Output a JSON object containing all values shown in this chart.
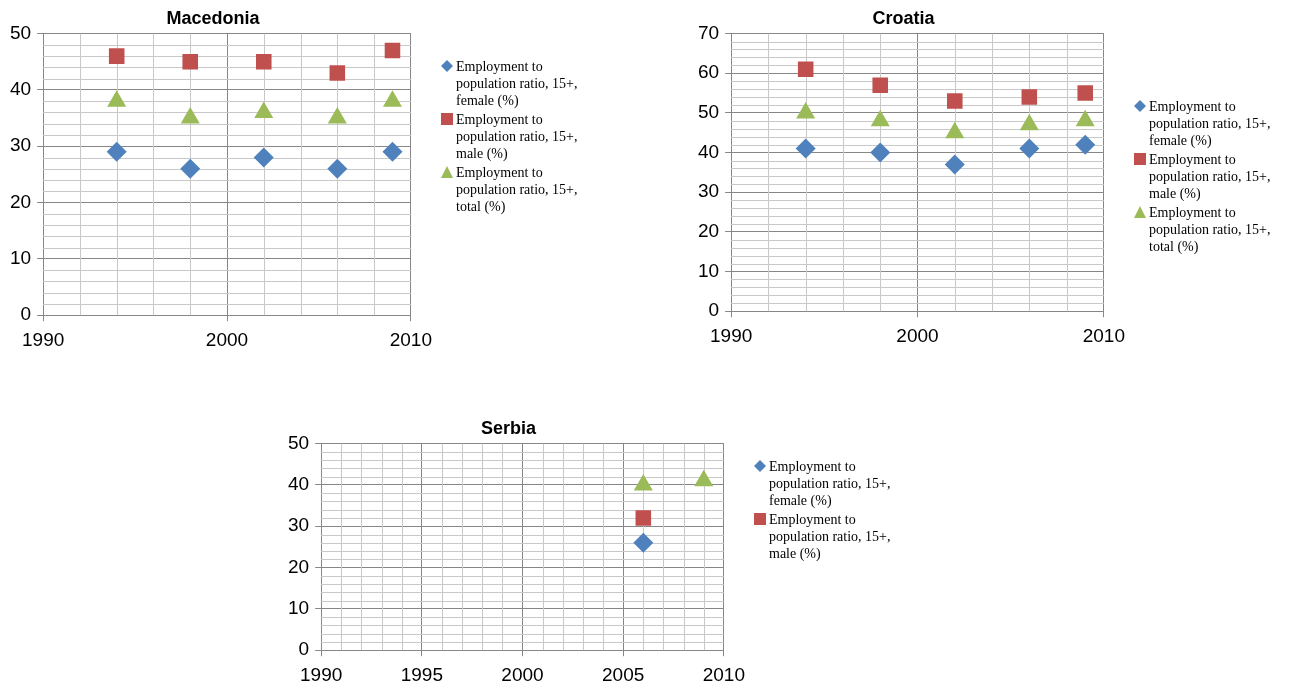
{
  "chart_data": [
    {
      "type": "scatter",
      "title": "Macedonia",
      "x": [
        1994,
        1998,
        2002,
        2006,
        2009
      ],
      "xlim": [
        1990,
        2010
      ],
      "xticks": [
        1990,
        2000,
        2010
      ],
      "ylim": [
        0,
        50
      ],
      "yticks": [
        0,
        10,
        20,
        30,
        40,
        50
      ],
      "grid": true,
      "legend": "right",
      "series": [
        {
          "name": "Employment to population ratio, 15+, female (%)",
          "color": "#4f81bd",
          "marker": "diamond",
          "values": [
            29,
            26,
            28,
            26,
            29
          ]
        },
        {
          "name": "Employment to population ratio, 15+, male (%)",
          "color": "#c0504d",
          "marker": "square",
          "values": [
            46,
            45,
            45,
            43,
            47
          ]
        },
        {
          "name": "Employment to population ratio, 15+, total (%)",
          "color": "#9bbb59",
          "marker": "triangle",
          "values": [
            38,
            35,
            36,
            35,
            38
          ]
        }
      ]
    },
    {
      "type": "scatter",
      "title": "Croatia",
      "x": [
        1994,
        1998,
        2002,
        2006,
        2009
      ],
      "xlim": [
        1990,
        2010
      ],
      "xticks": [
        1990,
        2000,
        2010
      ],
      "ylim": [
        0,
        70
      ],
      "yticks": [
        0,
        10,
        20,
        30,
        40,
        50,
        60,
        70
      ],
      "grid": true,
      "legend": "right",
      "series": [
        {
          "name": "Employment to population ratio, 15+, female (%)",
          "color": "#4f81bd",
          "marker": "diamond",
          "values": [
            41,
            40,
            37,
            41,
            42
          ]
        },
        {
          "name": "Employment to population ratio, 15+, male (%)",
          "color": "#c0504d",
          "marker": "square",
          "values": [
            61,
            57,
            53,
            54,
            55
          ]
        },
        {
          "name": "Employment to population ratio, 15+, total (%)",
          "color": "#9bbb59",
          "marker": "triangle",
          "values": [
            50,
            48,
            45,
            47,
            48
          ]
        }
      ]
    },
    {
      "type": "scatter",
      "title": "Serbia",
      "x": [
        2006,
        2009
      ],
      "xlim": [
        1990,
        2010
      ],
      "xticks": [
        1990,
        1995,
        2000,
        2005,
        2010
      ],
      "ylim": [
        0,
        50
      ],
      "yticks": [
        0,
        10,
        20,
        30,
        40,
        50
      ],
      "grid": true,
      "legend": "right",
      "series": [
        {
          "name": "Employment to population ratio, 15+, female (%)",
          "color": "#4f81bd",
          "marker": "diamond",
          "values": [
            26,
            null
          ]
        },
        {
          "name": "Employment to population ratio, 15+, male (%)",
          "color": "#c0504d",
          "marker": "square",
          "values": [
            32,
            null
          ]
        },
        {
          "color": "#9bbb59",
          "marker": "triangle",
          "values": [
            40,
            41
          ]
        }
      ]
    }
  ]
}
